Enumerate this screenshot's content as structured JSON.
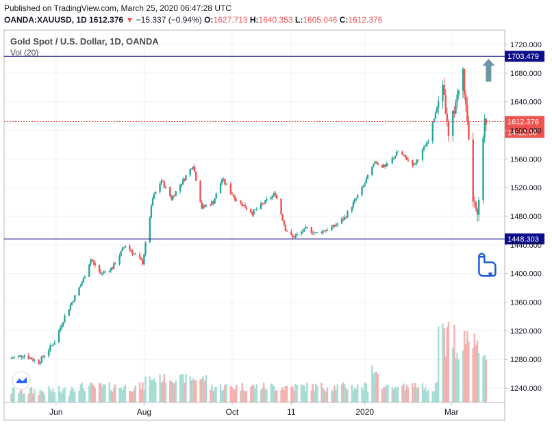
{
  "header": {
    "published": "Published on TradingView.com, March 25, 2020 06:47:28 UTC",
    "symbol": "OANDA:XAUUSD, 1D",
    "price": "1612.376",
    "change": "−15.337 (−0.94%)",
    "o_label": "O:",
    "o_value": "1627.713",
    "h_label": "H:",
    "h_value": "1640.353",
    "l_label": "L:",
    "l_value": "1605.046",
    "c_label": "C:",
    "c_value": "1612.376"
  },
  "legend": {
    "title": "Gold Spot / U.S. Dollar, 1D, OANDA",
    "volume_label": "Vol (20)"
  },
  "colors": {
    "up": "#26a69a",
    "down": "#ef5350",
    "level_line": "#0d0d8a",
    "current_line": "#ef5350",
    "arrow": "#6e96a5",
    "hand": "#1e5bd8"
  },
  "chart_data": {
    "type": "candlestick",
    "timeframe": "1D",
    "y_axis": {
      "min": 1220,
      "max": 1740,
      "ticks": [
        1240,
        1280,
        1320,
        1360,
        1400,
        1440,
        1480,
        1520,
        1560,
        1600,
        1640,
        1680,
        1720
      ]
    },
    "x_axis": {
      "tick_labels": [
        "Jun",
        "Aug",
        "Oct",
        "11",
        "2020",
        "Mar"
      ]
    },
    "price_path": [
      [
        "2019-05-01",
        1282
      ],
      [
        "2019-05-10",
        1286
      ],
      [
        "2019-05-20",
        1276
      ],
      [
        "2019-05-31",
        1305
      ],
      [
        "2019-06-07",
        1340
      ],
      [
        "2019-06-20",
        1392
      ],
      [
        "2019-06-25",
        1420
      ],
      [
        "2019-07-02",
        1400
      ],
      [
        "2019-07-10",
        1408
      ],
      [
        "2019-07-19",
        1440
      ],
      [
        "2019-07-31",
        1415
      ],
      [
        "2019-08-07",
        1505
      ],
      [
        "2019-08-13",
        1530
      ],
      [
        "2019-08-20",
        1505
      ],
      [
        "2019-09-04",
        1552
      ],
      [
        "2019-09-10",
        1492
      ],
      [
        "2019-09-18",
        1500
      ],
      [
        "2019-09-24",
        1532
      ],
      [
        "2019-10-03",
        1505
      ],
      [
        "2019-10-15",
        1485
      ],
      [
        "2019-10-31",
        1512
      ],
      [
        "2019-11-07",
        1462
      ],
      [
        "2019-11-12",
        1450
      ],
      [
        "2019-11-22",
        1463
      ],
      [
        "2019-11-28",
        1456
      ],
      [
        "2019-12-10",
        1465
      ],
      [
        "2019-12-18",
        1478
      ],
      [
        "2019-12-31",
        1522
      ],
      [
        "2020-01-08",
        1556
      ],
      [
        "2020-01-15",
        1548
      ],
      [
        "2020-01-24",
        1570
      ],
      [
        "2020-02-04",
        1552
      ],
      [
        "2020-02-14",
        1584
      ],
      [
        "2020-02-24",
        1668
      ],
      [
        "2020-02-28",
        1588
      ],
      [
        "2020-03-04",
        1640
      ],
      [
        "2020-03-09",
        1680
      ],
      [
        "2020-03-16",
        1505
      ],
      [
        "2020-03-19",
        1475
      ],
      [
        "2020-03-24",
        1610
      ],
      [
        "2020-03-25",
        1612.376
      ]
    ],
    "volume_note": "Vol (20) histogram, increasing sharply in March 2020",
    "annotations": [
      {
        "kind": "horizontal_line",
        "price": 1703.479,
        "label": "1703.479"
      },
      {
        "kind": "horizontal_line",
        "price": 1448.303,
        "label": "1448.303"
      },
      {
        "kind": "current_price",
        "price": 1612.376,
        "label": "1612.376",
        "countdown": "14:12:36"
      },
      {
        "kind": "arrow_up",
        "near_date": "2020-03-22"
      },
      {
        "kind": "pointing_hand",
        "near_date": "2020-03-22"
      }
    ]
  }
}
